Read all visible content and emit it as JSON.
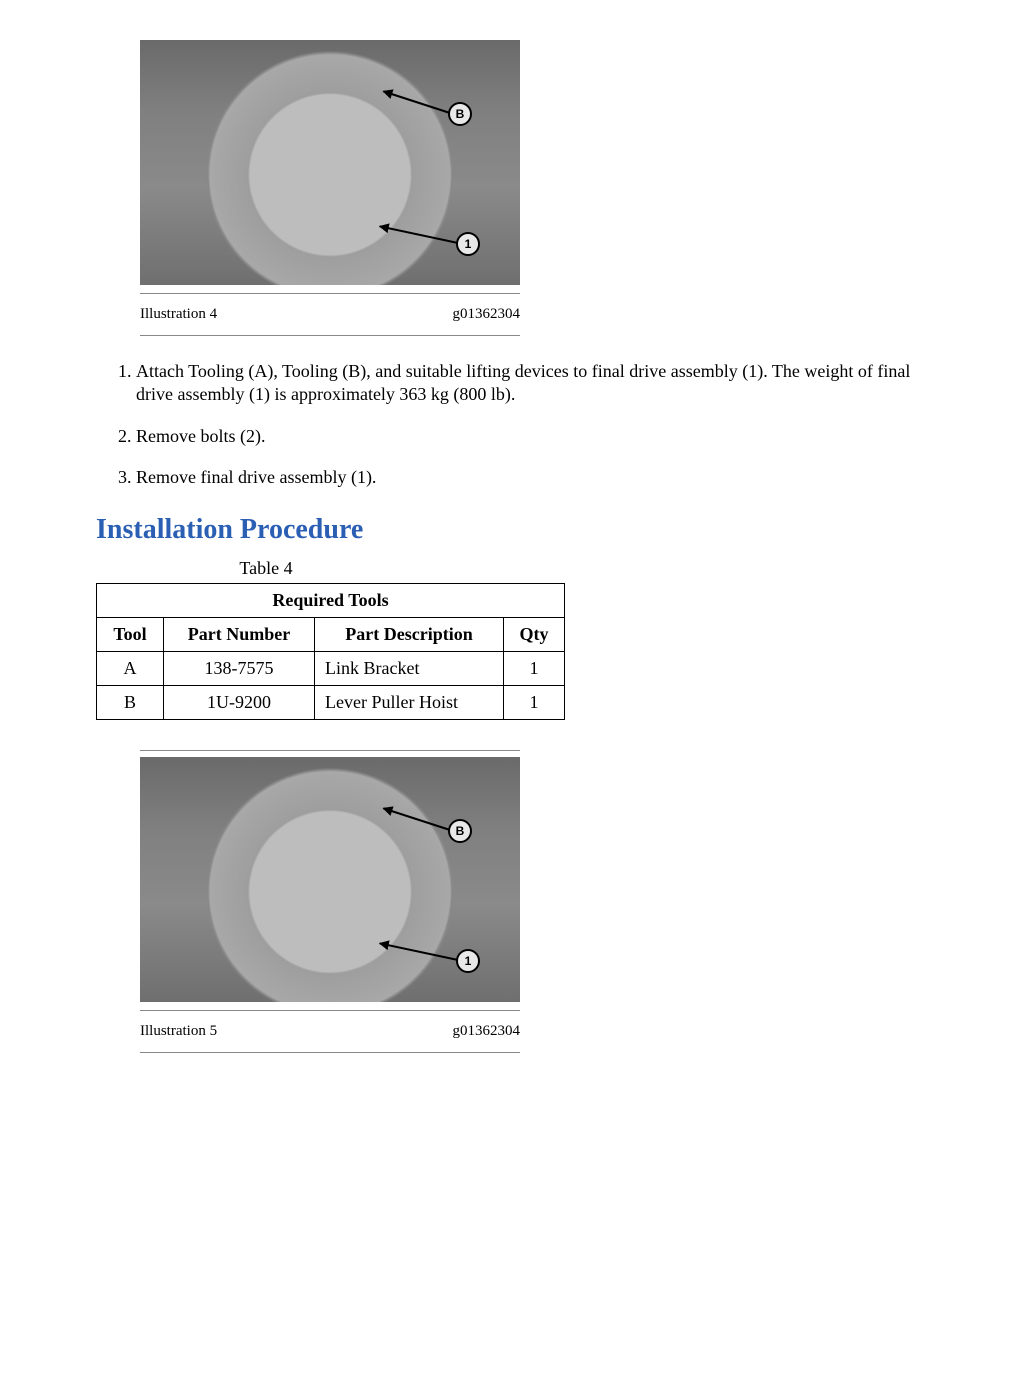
{
  "illustration_top": {
    "label": "Illustration 4",
    "code": "g01362304",
    "callouts": {
      "b": "B",
      "one": "1"
    }
  },
  "steps": {
    "s1": "Attach Tooling (A), Tooling (B), and suitable lifting devices to final drive assembly (1). The weight of final drive assembly (1) is approximately 363 kg (800 lb).",
    "s2": "Remove bolts (2).",
    "s3": "Remove final drive assembly (1)."
  },
  "section_heading": "Installation Procedure",
  "table": {
    "caption": "Table 4",
    "title": "Required Tools",
    "headers": {
      "tool": "Tool",
      "pn": "Part Number",
      "desc": "Part Description",
      "qty": "Qty"
    },
    "rows": [
      {
        "tool": "A",
        "pn": "138-7575",
        "desc": "Link Bracket",
        "qty": "1"
      },
      {
        "tool": "B",
        "pn": "1U-9200",
        "desc": "Lever Puller Hoist",
        "qty": "1"
      }
    ],
    "col_widths": [
      "46px",
      "130px",
      "168px",
      "40px"
    ]
  },
  "illustration_bottom": {
    "label": "Illustration 5",
    "code": "g01362304",
    "callouts": {
      "b": "B",
      "one": "1"
    }
  },
  "colors": {
    "heading": "#2b5fb3",
    "text": "#000000",
    "rule": "#888888"
  }
}
